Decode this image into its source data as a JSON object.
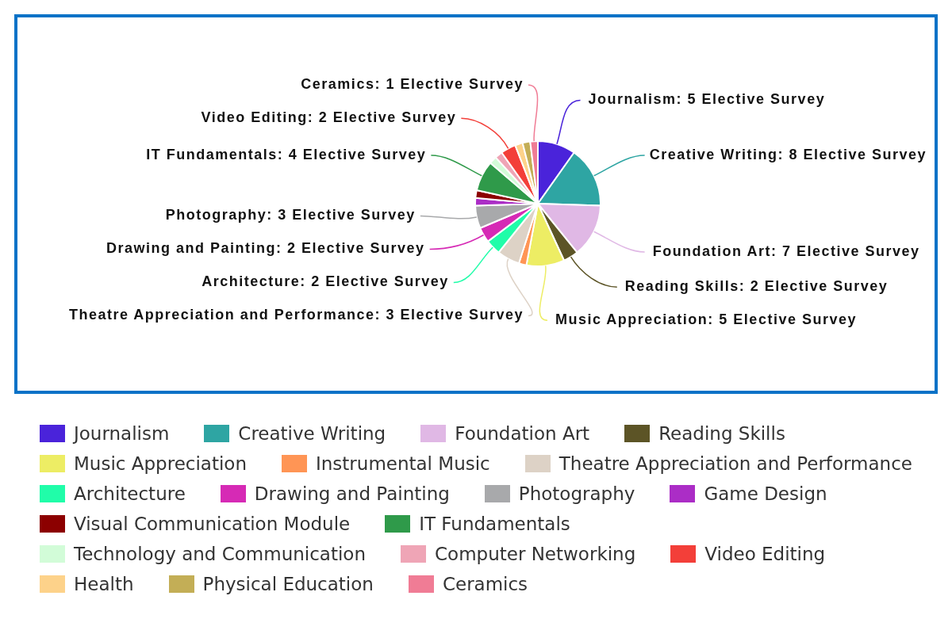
{
  "chart_data": {
    "type": "pie",
    "categories": [
      "Journalism",
      "Creative Writing",
      "Foundation Art",
      "Reading Skills",
      "Music Appreciation",
      "Instrumental Music",
      "Theatre Appreciation and Performance",
      "Architecture",
      "Drawing and Painting",
      "Photography",
      "Game Design",
      "Visual Communication Module",
      "IT Fundamentals",
      "Technology and Communication",
      "Computer Networking",
      "Video Editing",
      "Health",
      "Physical Education",
      "Ceramics"
    ],
    "values": [
      5,
      8,
      7,
      2,
      5,
      1,
      3,
      2,
      2,
      3,
      1,
      1,
      4,
      1,
      1,
      2,
      1,
      1,
      1
    ],
    "colors": [
      "#4a23da",
      "#2ea5a3",
      "#e0b8e5",
      "#5c5426",
      "#eded64",
      "#ff9555",
      "#ddd2c6",
      "#20fda9",
      "#d62ab5",
      "#a8a9ab",
      "#ab2dc6",
      "#8c0000",
      "#2f9a4a",
      "#d2fcd8",
      "#efa5b6",
      "#f33f39",
      "#fdd28a",
      "#c3ae56",
      "#f07c95"
    ],
    "value_labels": [
      "Journalism: 5 Elective Survey",
      "Creative Writing: 8 Elective Survey",
      "Foundation Art: 7 Elective Survey",
      "Reading Skills: 2 Elective Survey",
      "Music Appreciation: 5 Elective Survey",
      null,
      "Theatre Appreciation and Performance: 3 Elective Survey",
      "Architecture: 2 Elective Survey",
      "Drawing and Painting: 2 Elective Survey",
      "Photography: 3 Elective Survey",
      null,
      null,
      "IT Fundamentals: 4 Elective Survey",
      null,
      null,
      "Video Editing: 2 Elective Survey",
      null,
      null,
      "Ceramics: 1 Elective Survey"
    ],
    "legend": "bottom"
  }
}
